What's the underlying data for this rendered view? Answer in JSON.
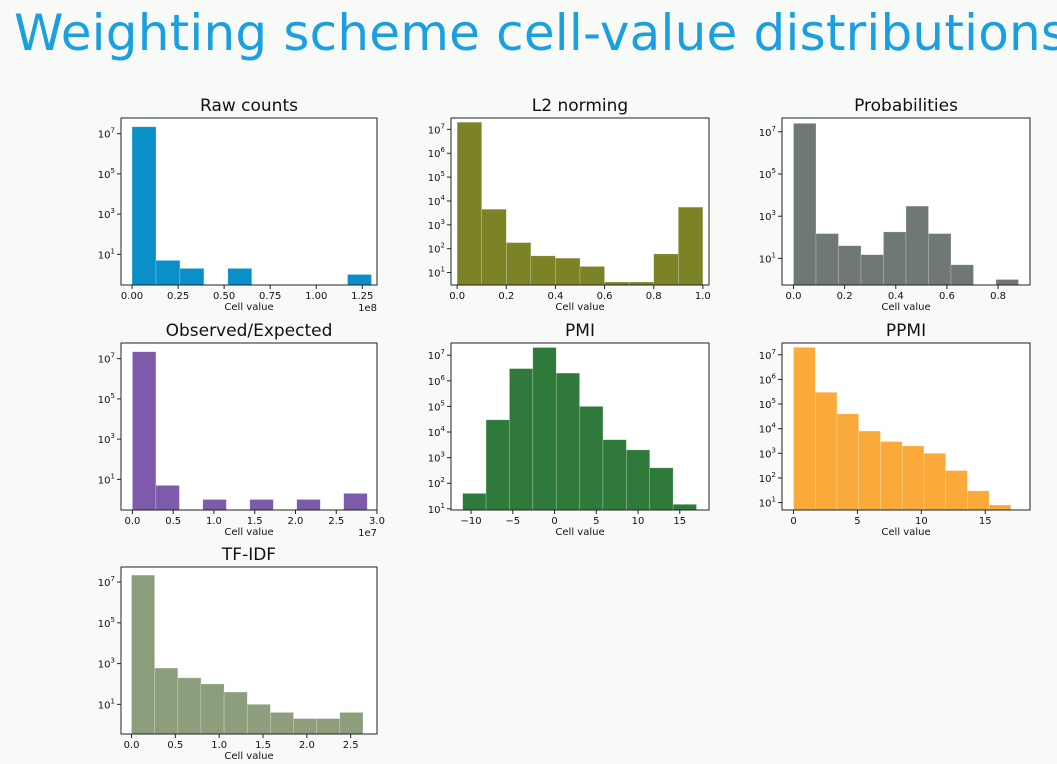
{
  "slide": {
    "title": "Weighting scheme cell-value distributions"
  },
  "chart_data": [
    {
      "type": "bar",
      "title": "Raw counts",
      "xlabel": "Cell value",
      "ylabel": "",
      "color": "#0b8fc8",
      "yscale": "log",
      "xlim": [
        -60000000,
        1330000000
      ],
      "ylim": [
        0.3,
        60000000
      ],
      "offset_label": "1e8",
      "xticks": [
        0,
        250000000,
        500000000,
        750000000,
        1000000000,
        1250000000
      ],
      "xtick_labels": [
        "0.00",
        "0.25",
        "0.50",
        "0.75",
        "1.00",
        "1.25"
      ],
      "yticks": [
        10,
        1000,
        100000,
        10000000
      ],
      "ytick_labels": [
        "10^1",
        "10^3",
        "10^5",
        "10^7"
      ],
      "bin_edges": [
        0,
        130000000,
        260000000,
        390000000,
        520000000,
        650000000,
        780000000,
        910000000,
        1040000000,
        1170000000,
        1300000000
      ],
      "counts": [
        22000000,
        5,
        2,
        0,
        2,
        0,
        0,
        0,
        0,
        1
      ]
    },
    {
      "type": "bar",
      "title": "L2 norming",
      "xlabel": "Cell value",
      "ylabel": "",
      "color": "#7c8226",
      "yscale": "log",
      "xlim": [
        -0.025,
        1.025
      ],
      "ylim": [
        3,
        30000000
      ],
      "xticks": [
        0,
        0.2,
        0.4,
        0.6,
        0.8,
        1.0
      ],
      "xtick_labels": [
        "0.0",
        "0.2",
        "0.4",
        "0.6",
        "0.8",
        "1.0"
      ],
      "yticks": [
        10,
        100,
        1000,
        10000,
        100000,
        1000000,
        10000000
      ],
      "ytick_labels": [
        "10^1",
        "10^2",
        "10^3",
        "10^4",
        "10^5",
        "10^6",
        "10^7"
      ],
      "bin_edges": [
        0,
        0.1,
        0.2,
        0.3,
        0.4,
        0.5,
        0.6,
        0.7,
        0.8,
        0.9,
        1.0
      ],
      "counts": [
        20000000,
        4500,
        180,
        50,
        40,
        18,
        4,
        4,
        60,
        5500
      ]
    },
    {
      "type": "bar",
      "title": "Probabilities",
      "xlabel": "Cell value",
      "ylabel": "",
      "color": "#6f7873",
      "yscale": "log",
      "xlim": [
        -0.045,
        0.925
      ],
      "ylim": [
        0.55,
        45000000
      ],
      "xticks": [
        0,
        0.2,
        0.4,
        0.6,
        0.8
      ],
      "xtick_labels": [
        "0.0",
        "0.2",
        "0.4",
        "0.6",
        "0.8"
      ],
      "yticks": [
        10,
        1000,
        100000,
        10000000
      ],
      "ytick_labels": [
        "10^1",
        "10^3",
        "10^5",
        "10^7"
      ],
      "bin_edges": [
        0,
        0.088,
        0.176,
        0.264,
        0.352,
        0.44,
        0.528,
        0.616,
        0.704,
        0.792,
        0.88
      ],
      "counts": [
        25000000,
        150,
        40,
        15,
        180,
        3000,
        150,
        5,
        0,
        1
      ]
    },
    {
      "type": "bar",
      "title": "Observed/Expected",
      "xlabel": "Cell value",
      "ylabel": "",
      "color": "#7e5baa",
      "yscale": "log",
      "xlim": [
        -1400000,
        30000000
      ],
      "ylim": [
        0.3,
        60000000
      ],
      "offset_label": "1e7",
      "xticks": [
        0,
        5000000,
        10000000,
        15000000,
        20000000,
        25000000,
        30000000
      ],
      "xtick_labels": [
        "0.0",
        "0.5",
        "1.0",
        "1.5",
        "2.0",
        "2.5",
        "3.0"
      ],
      "yticks": [
        10,
        1000,
        100000,
        10000000
      ],
      "ytick_labels": [
        "10^1",
        "10^3",
        "10^5",
        "10^7"
      ],
      "bin_edges": [
        0,
        2880000,
        5760000,
        8640000,
        11520000,
        14400000,
        17280000,
        20160000,
        23040000,
        25920000,
        28800000
      ],
      "counts": [
        22000000,
        5,
        0,
        1,
        0,
        1,
        0,
        1,
        0,
        2
      ]
    },
    {
      "type": "bar",
      "title": "PMI",
      "xlabel": "Cell value",
      "ylabel": "",
      "color": "#2f7a3a",
      "yscale": "log",
      "xlim": [
        -12.4,
        18.5
      ],
      "ylim": [
        9,
        30000000
      ],
      "xticks": [
        -10,
        -5,
        0,
        5,
        10,
        15
      ],
      "xtick_labels": [
        "−10",
        "−5",
        "0",
        "5",
        "10",
        "15"
      ],
      "yticks": [
        10,
        100,
        1000,
        10000,
        100000,
        1000000,
        10000000
      ],
      "ytick_labels": [
        "10^1",
        "10^2",
        "10^3",
        "10^4",
        "10^5",
        "10^6",
        "10^7"
      ],
      "bin_edges": [
        -11,
        -8.2,
        -5.4,
        -2.6,
        0.2,
        3,
        5.8,
        8.6,
        11.4,
        14.2,
        17
      ],
      "counts": [
        40,
        30000,
        3000000,
        20000000,
        2000000,
        100000,
        5000,
        2000,
        400,
        15
      ]
    },
    {
      "type": "bar",
      "title": "PPMI",
      "xlabel": "Cell value",
      "ylabel": "",
      "color": "#f9aa3a",
      "yscale": "log",
      "xlim": [
        -0.9,
        18.5
      ],
      "ylim": [
        5,
        30000000
      ],
      "xticks": [
        0,
        5,
        10,
        15
      ],
      "xtick_labels": [
        "0",
        "5",
        "10",
        "15"
      ],
      "yticks": [
        10,
        100,
        1000,
        10000,
        100000,
        1000000,
        10000000
      ],
      "ytick_labels": [
        "10^1",
        "10^2",
        "10^3",
        "10^4",
        "10^5",
        "10^6",
        "10^7"
      ],
      "bin_edges": [
        0,
        1.7,
        3.4,
        5.1,
        6.8,
        8.5,
        10.2,
        11.9,
        13.6,
        15.3,
        17
      ],
      "counts": [
        20000000,
        300000,
        40000,
        8000,
        3000,
        2000,
        1000,
        200,
        30,
        8
      ]
    },
    {
      "type": "bar",
      "title": "TF-IDF",
      "xlabel": "Cell value",
      "ylabel": "",
      "color": "#8c9e7c",
      "yscale": "log",
      "xlim": [
        -0.12,
        2.8
      ],
      "ylim": [
        0.35,
        55000000
      ],
      "xticks": [
        0,
        0.5,
        1.0,
        1.5,
        2.0,
        2.5
      ],
      "xtick_labels": [
        "0.0",
        "0.5",
        "1.0",
        "1.5",
        "2.0",
        "2.5"
      ],
      "yticks": [
        10,
        1000,
        100000,
        10000000
      ],
      "ytick_labels": [
        "10^1",
        "10^3",
        "10^5",
        "10^7"
      ],
      "bin_edges": [
        0,
        0.264,
        0.528,
        0.792,
        1.056,
        1.32,
        1.584,
        1.848,
        2.112,
        2.376,
        2.64
      ],
      "counts": [
        22000000,
        600,
        200,
        100,
        40,
        10,
        4,
        2,
        2,
        4
      ]
    }
  ]
}
